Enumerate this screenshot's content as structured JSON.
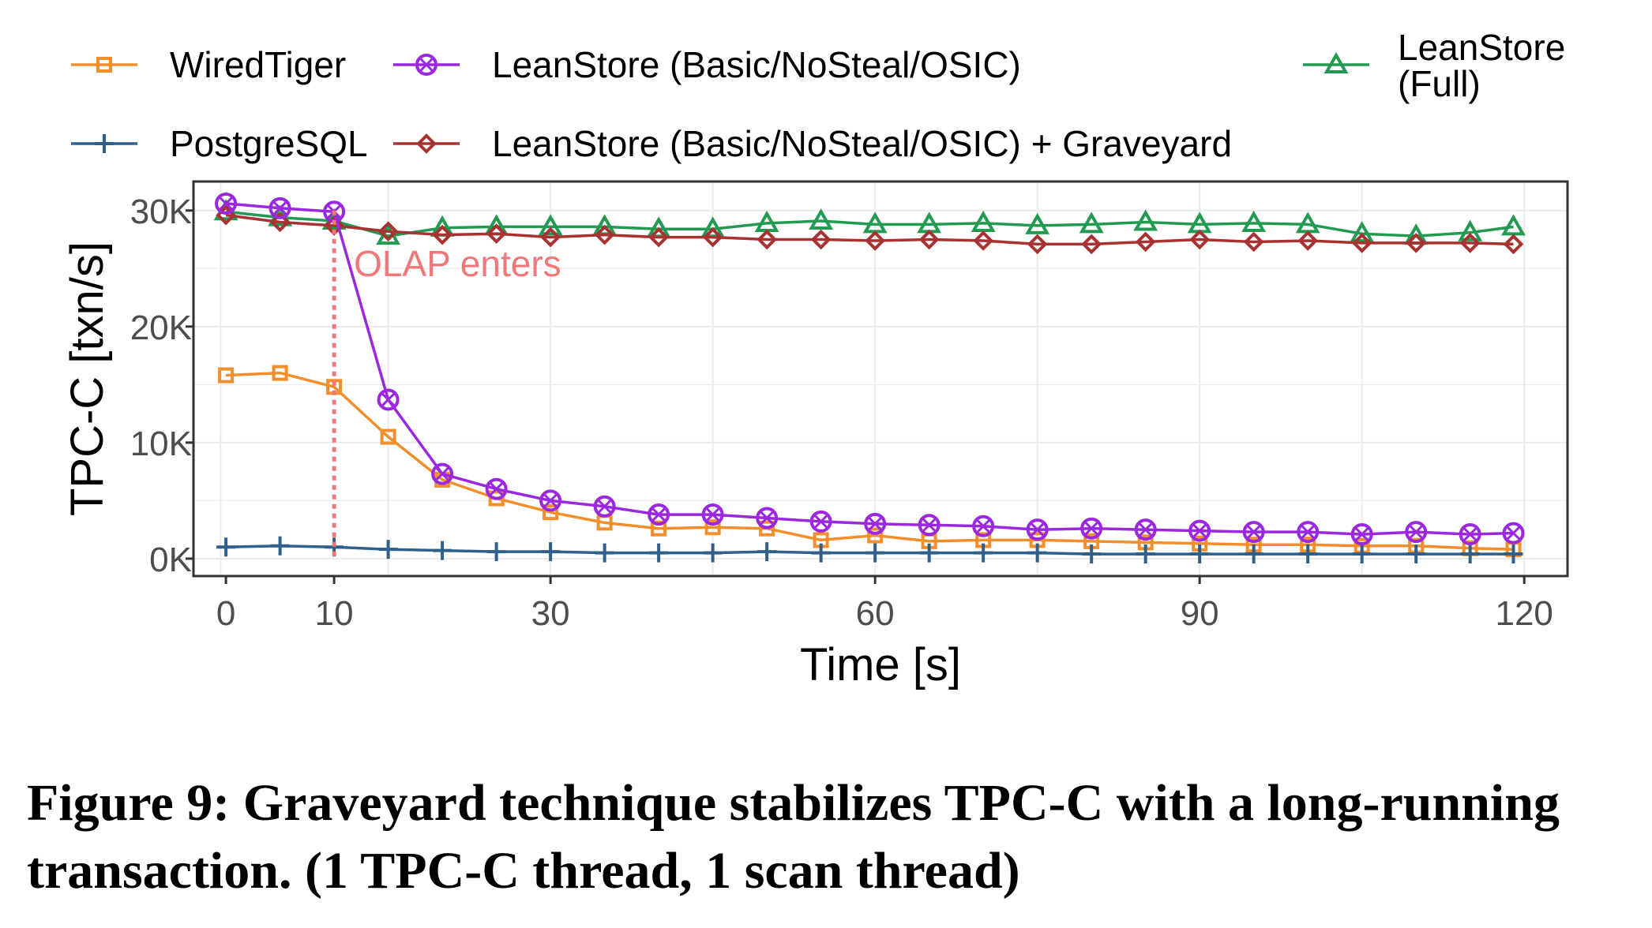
{
  "caption": "Figure 9: Graveyard technique stabilizes TPC-C with a long-running transaction. (1 TPC-C thread, 1 scan thread)",
  "chart_data": {
    "type": "line",
    "xlabel": "Time [s]",
    "ylabel": "TPC-C [txn/s]",
    "xlim": [
      -3,
      124
    ],
    "ylim": [
      -1500,
      32500
    ],
    "x_ticks": [
      0,
      10,
      30,
      60,
      90,
      120
    ],
    "x_tick_labels": [
      "0",
      "10",
      "30",
      "60",
      "90",
      "120"
    ],
    "y_ticks": [
      0,
      10000,
      20000,
      30000
    ],
    "y_tick_labels": [
      "0K",
      "10K",
      "20K",
      "30K"
    ],
    "grid": true,
    "legend_position": "top",
    "annotation": {
      "text": "OLAP enters",
      "x": 10,
      "color": "#f07878"
    },
    "x": [
      0,
      5,
      10,
      15,
      20,
      25,
      30,
      35,
      40,
      45,
      50,
      55,
      60,
      65,
      70,
      75,
      80,
      85,
      90,
      95,
      100,
      105,
      110,
      115,
      119
    ],
    "series": [
      {
        "name": "WiredTiger",
        "color": "#f28e2b",
        "marker": "square",
        "values": [
          15800,
          16000,
          14800,
          10500,
          6800,
          5200,
          4000,
          3100,
          2600,
          2700,
          2600,
          1600,
          2000,
          1500,
          1600,
          1600,
          1500,
          1400,
          1300,
          1200,
          1200,
          1100,
          1100,
          900,
          800
        ]
      },
      {
        "name": "PostgreSQL",
        "color": "#2f5f8a",
        "marker": "plus",
        "values": [
          1000,
          1100,
          1000,
          800,
          700,
          600,
          600,
          500,
          500,
          500,
          600,
          500,
          500,
          500,
          500,
          500,
          400,
          400,
          400,
          400,
          400,
          400,
          400,
          400,
          400
        ]
      },
      {
        "name": "LeanStore (Basic/NoSteal/OSIC)",
        "color": "#9b27e0",
        "marker": "circle-x",
        "values": [
          30600,
          30200,
          29900,
          13700,
          7300,
          6000,
          5000,
          4500,
          3800,
          3800,
          3500,
          3200,
          3000,
          2900,
          2800,
          2500,
          2600,
          2500,
          2400,
          2300,
          2300,
          2100,
          2300,
          2100,
          2200
        ]
      },
      {
        "name": "LeanStore (Basic/NoSteal/OSIC) + Graveyard",
        "color": "#a83232",
        "marker": "diamond",
        "values": [
          29600,
          29000,
          28700,
          28200,
          27900,
          28000,
          27700,
          27900,
          27700,
          27700,
          27500,
          27500,
          27400,
          27500,
          27400,
          27100,
          27100,
          27300,
          27500,
          27300,
          27400,
          27200,
          27200,
          27200,
          27100
        ]
      },
      {
        "name": "LeanStore (Full)",
        "color": "#229a52",
        "marker": "triangle",
        "values": [
          29900,
          29400,
          29100,
          27800,
          28500,
          28600,
          28600,
          28600,
          28400,
          28400,
          28900,
          29100,
          28800,
          28800,
          28900,
          28700,
          28800,
          29000,
          28800,
          28900,
          28800,
          28000,
          27800,
          28100,
          28600
        ]
      }
    ]
  }
}
